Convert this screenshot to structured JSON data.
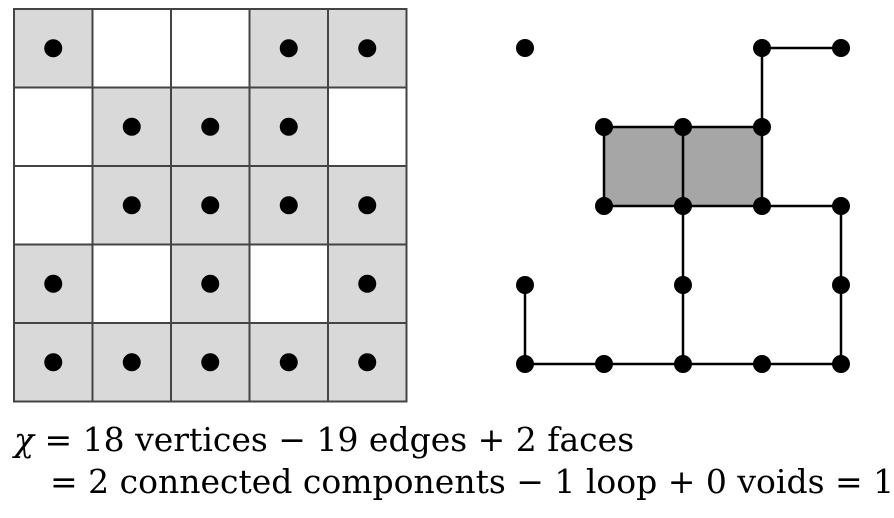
{
  "grid": {
    "rows": 5,
    "cols": 5,
    "cells": [
      [
        1,
        0,
        0,
        1,
        1
      ],
      [
        0,
        1,
        1,
        1,
        0
      ],
      [
        0,
        1,
        1,
        1,
        1
      ],
      [
        1,
        0,
        1,
        0,
        1
      ],
      [
        1,
        1,
        1,
        1,
        1
      ]
    ],
    "colors": {
      "filled": "#d9d9d9",
      "empty": "#ffffff",
      "line": "#444444",
      "dot": "#000000"
    }
  },
  "graph": {
    "colors": {
      "face": "#a6a6a6",
      "edge": "#000000",
      "vertex": "#000000"
    }
  },
  "formula": {
    "line1": {
      "chi": "χ",
      "text": " = 18 vertices − 19 edges + 2 faces"
    },
    "line2": {
      "text": "= 2 connected components − 1 loop + 0 voids = 1"
    }
  }
}
